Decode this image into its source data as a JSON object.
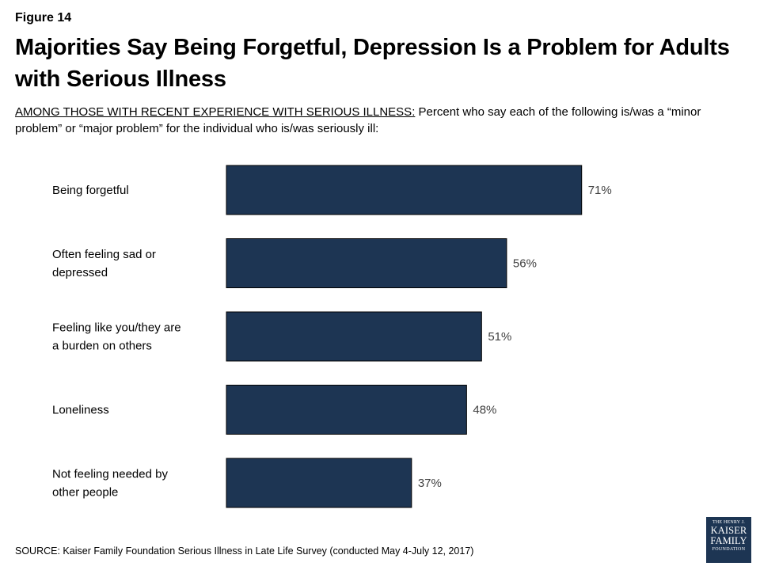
{
  "figure_label": "Figure 14",
  "title": "Majorities Say Being Forgetful, Depression Is a Problem for Adults with Serious Illness",
  "subtitle_lead": "AMONG THOSE WITH RECENT EXPERIENCE WITH SERIOUS ILLNESS:",
  "subtitle_rest": " Percent who say each of the following is/was a “minor problem” or “major problem” for the individual who is/was seriously ill:",
  "source": "SOURCE: Kaiser Family Foundation Serious Illness in Late Life Survey (conducted May 4-July 12, 2017)",
  "logo": {
    "line1": "THE HENRY J.",
    "line2": "KAISER",
    "line3": "FAMILY",
    "line4": "FOUNDATION"
  },
  "colors": {
    "bar": "#1d3553",
    "bar_border": "#000000"
  },
  "chart_data": {
    "type": "bar",
    "orientation": "horizontal",
    "title": "",
    "xlabel": "",
    "ylabel": "",
    "categories": [
      [
        "Being forgetful"
      ],
      [
        "Often feeling sad or",
        "depressed"
      ],
      [
        "Feeling like you/they are",
        "a burden on others"
      ],
      [
        "Loneliness"
      ],
      [
        "Not feeling needed by",
        "other people"
      ]
    ],
    "values": [
      71,
      56,
      51,
      48,
      37
    ],
    "value_labels": [
      "71%",
      "56%",
      "51%",
      "48%",
      "37%"
    ],
    "xlim": [
      0,
      100
    ],
    "grid": false,
    "legend": "none"
  }
}
